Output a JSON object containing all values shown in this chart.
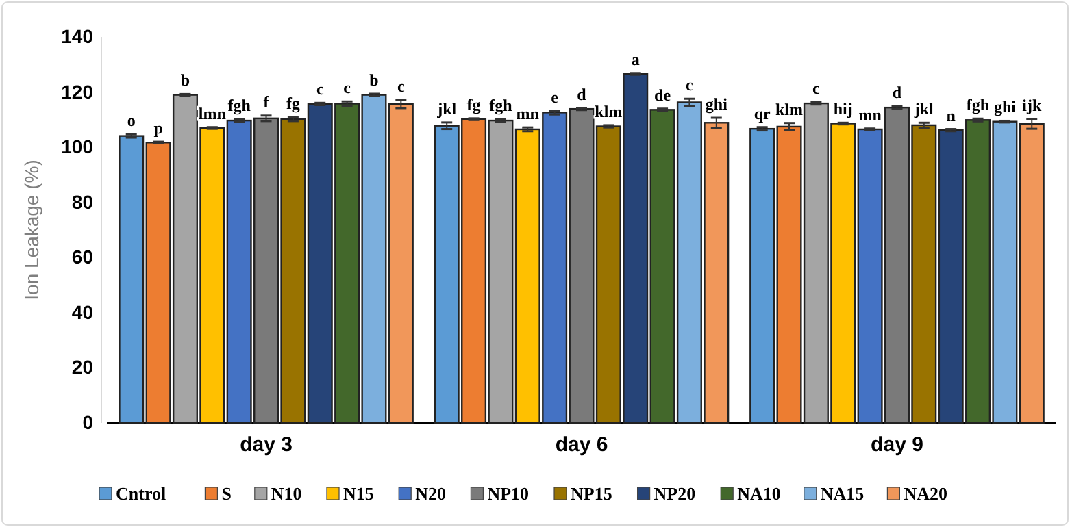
{
  "chart_data": {
    "type": "bar",
    "ylabel": "Ion Leakage  (%)",
    "categories": [
      "day 3",
      "day 6",
      "day 9"
    ],
    "ylim": [
      0,
      140
    ],
    "yticks": [
      0,
      20,
      40,
      60,
      80,
      100,
      120,
      140
    ],
    "grid": false,
    "legend": "bottom",
    "series": [
      {
        "name": "Cntrol",
        "color": "#5b9bd5",
        "values": [
          104.1,
          107.8,
          106.7
        ],
        "errors": [
          0.6,
          1.2,
          0.6
        ],
        "value_labels": [
          "o",
          "jkl",
          "qr"
        ]
      },
      {
        "name": "S",
        "color": "#ed7d31",
        "values": [
          101.7,
          110.2,
          107.5
        ],
        "errors": [
          0.3,
          0.3,
          1.3
        ],
        "value_labels": [
          "p",
          "fg",
          "klm"
        ]
      },
      {
        "name": "N10",
        "color": "#a5a5a5",
        "values": [
          119,
          109.7,
          115.9
        ],
        "errors": [
          0.3,
          0.4,
          0.4
        ],
        "value_labels": [
          "b",
          "fgh",
          "c"
        ]
      },
      {
        "name": "N15",
        "color": "#ffc000",
        "values": [
          107,
          106.5,
          108.6
        ],
        "errors": [
          0.3,
          0.7,
          0.3
        ],
        "value_labels": [
          "lmn",
          "mn",
          "hij"
        ]
      },
      {
        "name": "N20",
        "color": "#4472c4",
        "values": [
          109.7,
          112.6,
          106.5
        ],
        "errors": [
          0.4,
          0.7,
          0.3
        ],
        "value_labels": [
          "fgh",
          "e",
          "mn"
        ]
      },
      {
        "name": "NP10",
        "color": "#7a7a7a",
        "values": [
          110.5,
          113.9,
          114.4
        ],
        "errors": [
          1,
          0.4,
          0.5
        ],
        "value_labels": [
          "f",
          "d",
          "d"
        ]
      },
      {
        "name": "NP15",
        "color": "#997300",
        "values": [
          110.2,
          107.6,
          108
        ],
        "errors": [
          0.7,
          0.4,
          0.9
        ],
        "value_labels": [
          "fg",
          "klm",
          "jkl"
        ]
      },
      {
        "name": "NP20",
        "color": "#264478",
        "values": [
          115.7,
          126.6,
          106.2
        ],
        "errors": [
          0.4,
          0.3,
          0.4
        ],
        "value_labels": [
          "c",
          "a",
          "n"
        ]
      },
      {
        "name": "NA10",
        "color": "#43682b",
        "values": [
          115.8,
          113.6,
          109.9
        ],
        "errors": [
          0.8,
          0.4,
          0.5
        ],
        "value_labels": [
          "c",
          "de",
          "fgh"
        ]
      },
      {
        "name": "NA15",
        "color": "#7cafdd",
        "values": [
          119,
          116.3,
          109.3
        ],
        "errors": [
          0.4,
          1.3,
          0.3
        ],
        "value_labels": [
          "b",
          "c",
          "ghi"
        ]
      },
      {
        "name": "NA20",
        "color": "#f1975a",
        "values": [
          115.7,
          108.9,
          108.5
        ],
        "errors": [
          1.5,
          1.8,
          1.8
        ],
        "value_labels": [
          "c",
          "ghi",
          "ijk"
        ]
      }
    ]
  }
}
